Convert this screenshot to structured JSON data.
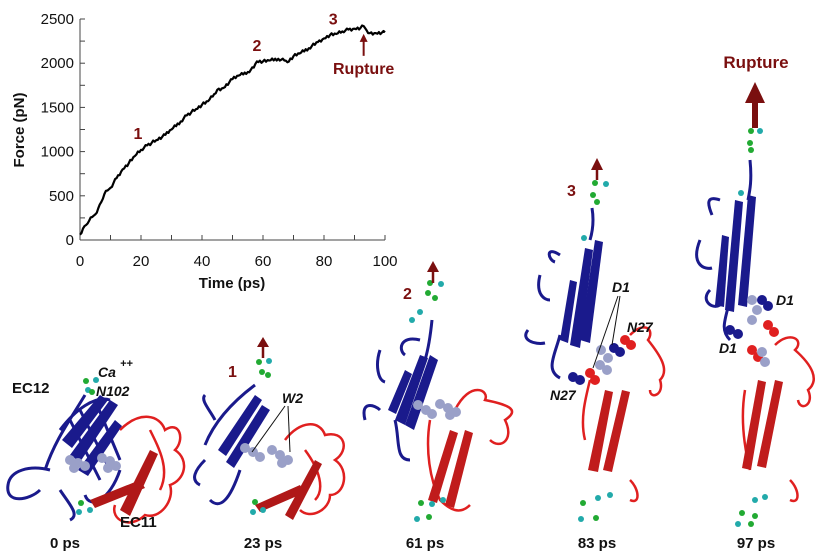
{
  "chart_data": {
    "type": "line",
    "title": "",
    "xlabel": "Time (ps)",
    "ylabel": "Force (pN)",
    "xlim": [
      0,
      100
    ],
    "ylim": [
      0,
      2500
    ],
    "xticks": [
      0,
      20,
      40,
      60,
      80,
      100
    ],
    "yticks": [
      0,
      500,
      1000,
      1500,
      2000,
      2500
    ],
    "grid": false,
    "series": [
      {
        "name": "Force",
        "color": "#000000",
        "x": [
          0,
          1,
          2,
          3,
          4,
          5,
          6,
          7,
          8,
          9,
          10,
          12,
          14,
          16,
          18,
          20,
          22,
          25,
          28,
          30,
          33,
          35,
          38,
          40,
          42,
          44,
          45,
          47,
          50,
          52,
          55,
          57,
          58,
          60,
          62,
          65,
          67,
          68,
          70,
          72,
          75,
          78,
          80,
          82,
          84,
          86,
          88,
          90,
          92,
          93,
          94,
          95,
          97,
          100
        ],
        "y": [
          60,
          130,
          170,
          220,
          260,
          290,
          360,
          430,
          520,
          560,
          590,
          700,
          800,
          870,
          950,
          1020,
          1070,
          1130,
          1190,
          1250,
          1340,
          1410,
          1480,
          1530,
          1570,
          1650,
          1700,
          1720,
          1820,
          1860,
          1900,
          1950,
          2020,
          2020,
          2030,
          2050,
          2030,
          2010,
          2080,
          2110,
          2170,
          2240,
          2280,
          2320,
          2330,
          2360,
          2380,
          2390,
          2400,
          2420,
          2370,
          2340,
          2340,
          2350
        ]
      }
    ],
    "annotations": [
      {
        "text": "1",
        "x": 19,
        "y": 1140
      },
      {
        "text": "2",
        "x": 58,
        "y": 2140
      },
      {
        "text": "3",
        "x": 83,
        "y": 2440
      },
      {
        "text": "Rupture",
        "x": 93,
        "y": 2400,
        "arrow": true
      }
    ]
  },
  "colors": {
    "event": "#7a0f0f",
    "blue_domain": "#1a1a8c",
    "red_domain": "#e02020",
    "ion_green": "#22aa33",
    "ion_cyan": "#22aaaa",
    "w2_residue": "#9aa0c8"
  },
  "panels": [
    {
      "time": "0 ps",
      "event": "",
      "labels": [
        "EC12",
        "Ca",
        "++",
        "N102",
        "EC11"
      ]
    },
    {
      "time": "23 ps",
      "event": "1",
      "labels": [
        "W2"
      ]
    },
    {
      "time": "61 ps",
      "event": "2",
      "labels": []
    },
    {
      "time": "83 ps",
      "event": "3",
      "labels": [
        "D1",
        "N27",
        "N27"
      ]
    },
    {
      "time": "97 ps",
      "event": "Rupture",
      "labels": [
        "D1",
        "D1"
      ]
    }
  ]
}
